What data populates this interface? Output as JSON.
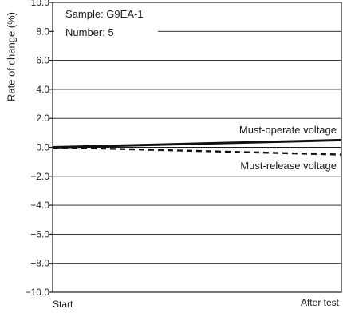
{
  "chart_data": {
    "type": "line",
    "ylabel": "Rate of change (%)",
    "x_tick_labels": [
      "Start",
      "After test"
    ],
    "ylim": [
      -10,
      10
    ],
    "y_ticks": [
      {
        "value": 10,
        "label": "10.0"
      },
      {
        "value": 8,
        "label": "8.0"
      },
      {
        "value": 6,
        "label": "6.0"
      },
      {
        "value": 4,
        "label": "4.0"
      },
      {
        "value": 2,
        "label": "2.0"
      },
      {
        "value": 0,
        "label": "0.0"
      },
      {
        "value": -2,
        "label": "−2.0"
      },
      {
        "value": -4,
        "label": "−4.0"
      },
      {
        "value": -6,
        "label": "−6.0"
      },
      {
        "value": -8,
        "label": "−8.0"
      },
      {
        "value": -10,
        "label": "−10.0"
      }
    ],
    "grid": "horizontal",
    "info_lines": [
      "Sample: G9EA-1",
      "Number: 5"
    ],
    "series": [
      {
        "name": "Must-operate voltage",
        "style": "solid",
        "values": [
          0,
          0.5
        ]
      },
      {
        "name": "Must-release voltage",
        "style": "dashed",
        "values": [
          0,
          -0.5
        ]
      }
    ]
  }
}
